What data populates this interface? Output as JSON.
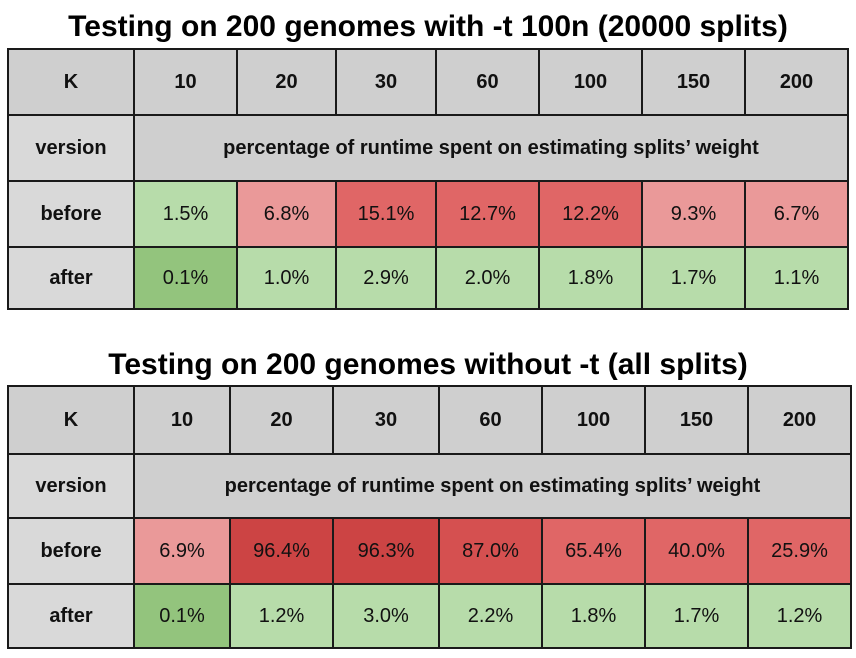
{
  "chart_data": [
    {
      "type": "table",
      "title": "Testing on 200 genomes with -t 100n (20000 splits)",
      "corner_label": "K",
      "categories": [
        "10",
        "20",
        "30",
        "60",
        "100",
        "150",
        "200"
      ],
      "subheader_label": "version",
      "subheader_text": "percentage of runtime spent on estimating splits’ weight",
      "rows": [
        {
          "label": "before",
          "cells": [
            "1.5%",
            "6.8%",
            "15.1%",
            "12.7%",
            "12.2%",
            "9.3%",
            "6.7%"
          ],
          "colors": [
            "#b7dcaa",
            "#ea9999",
            "#e06666",
            "#e06666",
            "#e06666",
            "#ea9999",
            "#ea9999"
          ]
        },
        {
          "label": "after",
          "cells": [
            "0.1%",
            "1.0%",
            "2.9%",
            "2.0%",
            "1.8%",
            "1.7%",
            "1.1%"
          ],
          "colors": [
            "#93c47d",
            "#b7dcaa",
            "#b7dcaa",
            "#b7dcaa",
            "#b7dcaa",
            "#b7dcaa",
            "#b7dcaa"
          ]
        }
      ]
    },
    {
      "type": "table",
      "title": "Testing on 200 genomes without -t (all splits)",
      "corner_label": "K",
      "categories": [
        "10",
        "20",
        "30",
        "60",
        "100",
        "150",
        "200"
      ],
      "subheader_label": "version",
      "subheader_text": "percentage of runtime spent on estimating splits’ weight",
      "rows": [
        {
          "label": "before",
          "cells": [
            "6.9%",
            "96.4%",
            "96.3%",
            "87.0%",
            "65.4%",
            "40.0%",
            "25.9%"
          ],
          "colors": [
            "#ea9999",
            "#cc4444",
            "#cc4444",
            "#d55050",
            "#e06666",
            "#e06666",
            "#e06666"
          ]
        },
        {
          "label": "after",
          "cells": [
            "0.1%",
            "1.2%",
            "3.0%",
            "2.2%",
            "1.8%",
            "1.7%",
            "1.2%"
          ],
          "colors": [
            "#93c47d",
            "#b7dcaa",
            "#b7dcaa",
            "#b7dcaa",
            "#b7dcaa",
            "#b7dcaa",
            "#b7dcaa"
          ]
        }
      ]
    }
  ]
}
